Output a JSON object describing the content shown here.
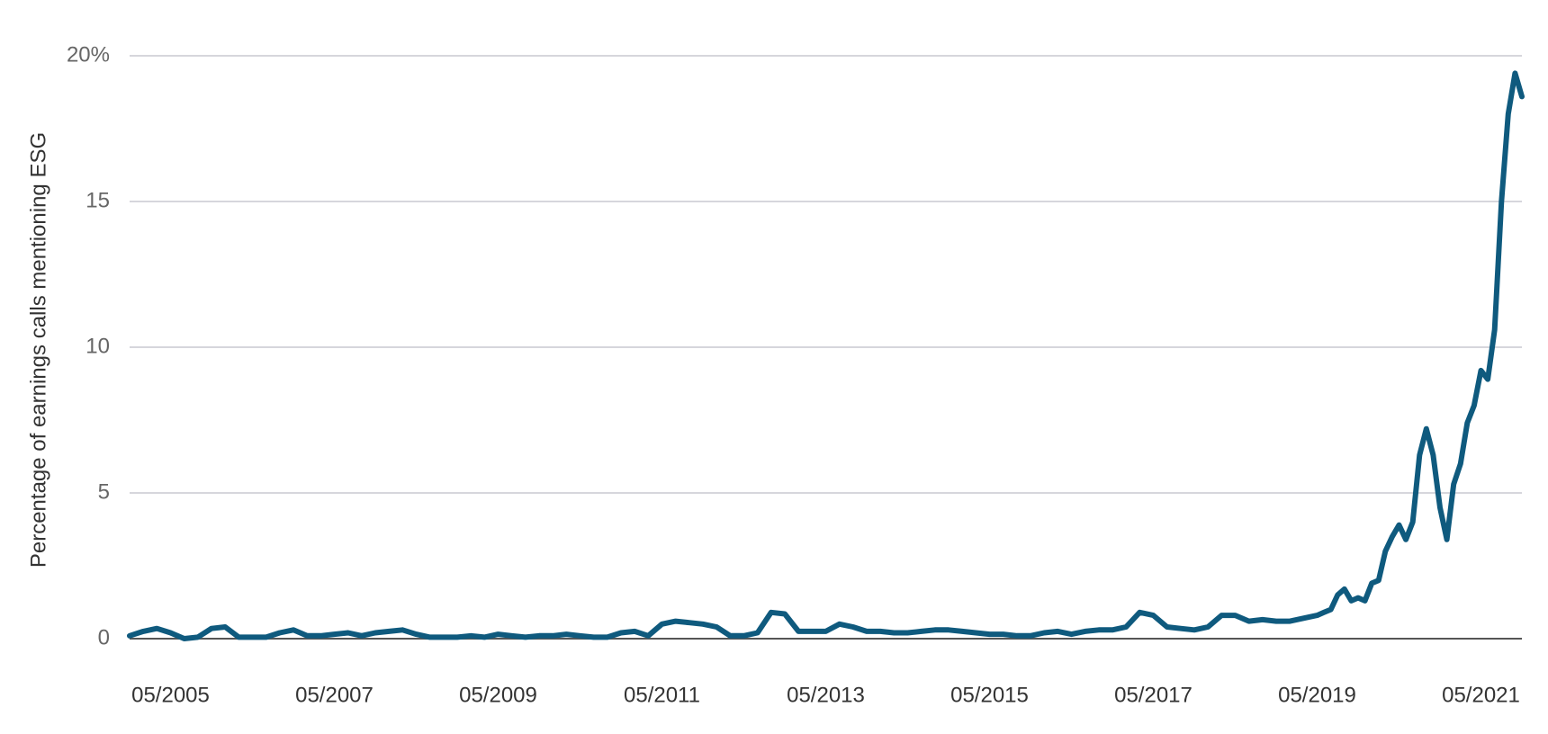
{
  "chart_data": {
    "type": "line",
    "y_label": "Percentage of earnings calls mentioning ESG",
    "x": [
      "11/2004",
      "01/2005",
      "03/2005",
      "05/2005",
      "07/2005",
      "09/2005",
      "11/2005",
      "01/2006",
      "03/2006",
      "05/2006",
      "07/2006",
      "09/2006",
      "11/2006",
      "01/2007",
      "03/2007",
      "05/2007",
      "07/2007",
      "09/2007",
      "11/2007",
      "01/2008",
      "03/2008",
      "05/2008",
      "07/2008",
      "09/2008",
      "11/2008",
      "01/2009",
      "03/2009",
      "05/2009",
      "07/2009",
      "09/2009",
      "11/2009",
      "01/2010",
      "03/2010",
      "05/2010",
      "07/2010",
      "09/2010",
      "11/2010",
      "01/2011",
      "03/2011",
      "05/2011",
      "07/2011",
      "09/2011",
      "11/2011",
      "01/2012",
      "03/2012",
      "05/2012",
      "07/2012",
      "09/2012",
      "11/2012",
      "01/2013",
      "03/2013",
      "05/2013",
      "07/2013",
      "09/2013",
      "11/2013",
      "01/2014",
      "03/2014",
      "05/2014",
      "07/2014",
      "09/2014",
      "11/2014",
      "01/2015",
      "03/2015",
      "05/2015",
      "07/2015",
      "09/2015",
      "11/2015",
      "01/2016",
      "03/2016",
      "05/2016",
      "07/2016",
      "09/2016",
      "11/2016",
      "01/2017",
      "03/2017",
      "05/2017",
      "07/2017",
      "09/2017",
      "11/2017",
      "01/2018",
      "03/2018",
      "05/2018",
      "07/2018",
      "09/2018",
      "11/2018",
      "01/2019",
      "03/2019",
      "05/2019",
      "06/2019",
      "07/2019",
      "08/2019",
      "09/2019",
      "10/2019",
      "11/2019",
      "12/2019",
      "01/2020",
      "02/2020",
      "03/2020",
      "04/2020",
      "05/2020",
      "06/2020",
      "07/2020",
      "08/2020",
      "09/2020",
      "10/2020",
      "11/2020",
      "12/2020",
      "01/2021",
      "02/2021",
      "03/2021",
      "04/2021",
      "05/2021",
      "06/2021",
      "07/2021",
      "08/2021",
      "09/2021",
      "10/2021",
      "11/2021"
    ],
    "series": [
      {
        "color": "#0f5a7e",
        "values": [
          0.1,
          0.25,
          0.35,
          0.2,
          0.0,
          0.05,
          0.35,
          0.4,
          0.05,
          0.05,
          0.05,
          0.2,
          0.3,
          0.1,
          0.1,
          0.15,
          0.2,
          0.1,
          0.2,
          0.25,
          0.3,
          0.15,
          0.05,
          0.05,
          0.05,
          0.1,
          0.05,
          0.15,
          0.1,
          0.05,
          0.1,
          0.1,
          0.15,
          0.1,
          0.05,
          0.05,
          0.2,
          0.25,
          0.1,
          0.5,
          0.6,
          0.55,
          0.5,
          0.4,
          0.1,
          0.1,
          0.2,
          0.9,
          0.85,
          0.25,
          0.25,
          0.25,
          0.5,
          0.4,
          0.25,
          0.25,
          0.2,
          0.2,
          0.25,
          0.3,
          0.3,
          0.25,
          0.2,
          0.15,
          0.15,
          0.1,
          0.1,
          0.2,
          0.25,
          0.15,
          0.25,
          0.3,
          0.3,
          0.4,
          0.9,
          0.8,
          0.4,
          0.35,
          0.3,
          0.4,
          0.8,
          0.8,
          0.6,
          0.65,
          0.6,
          0.6,
          0.7,
          0.8,
          0.9,
          1.0,
          1.5,
          1.7,
          1.3,
          1.4,
          1.3,
          1.9,
          2.0,
          3.0,
          3.5,
          3.9,
          3.4,
          4.0,
          6.3,
          7.2,
          6.3,
          4.5,
          3.4,
          5.3,
          6.0,
          7.4,
          8.0,
          9.2,
          8.9,
          10.6,
          15.0,
          18.0,
          19.4,
          18.6
        ]
      }
    ],
    "xlim": [
      "11/2004",
      "11/2021"
    ],
    "xticks": [
      "05/2005",
      "05/2007",
      "05/2009",
      "05/2011",
      "05/2013",
      "05/2015",
      "05/2017",
      "05/2019",
      "05/2021"
    ],
    "ylim": [
      0,
      20
    ],
    "yticks": [
      0,
      5,
      10,
      15,
      {
        "value": 20,
        "label": "20%"
      }
    ],
    "grid": true
  }
}
